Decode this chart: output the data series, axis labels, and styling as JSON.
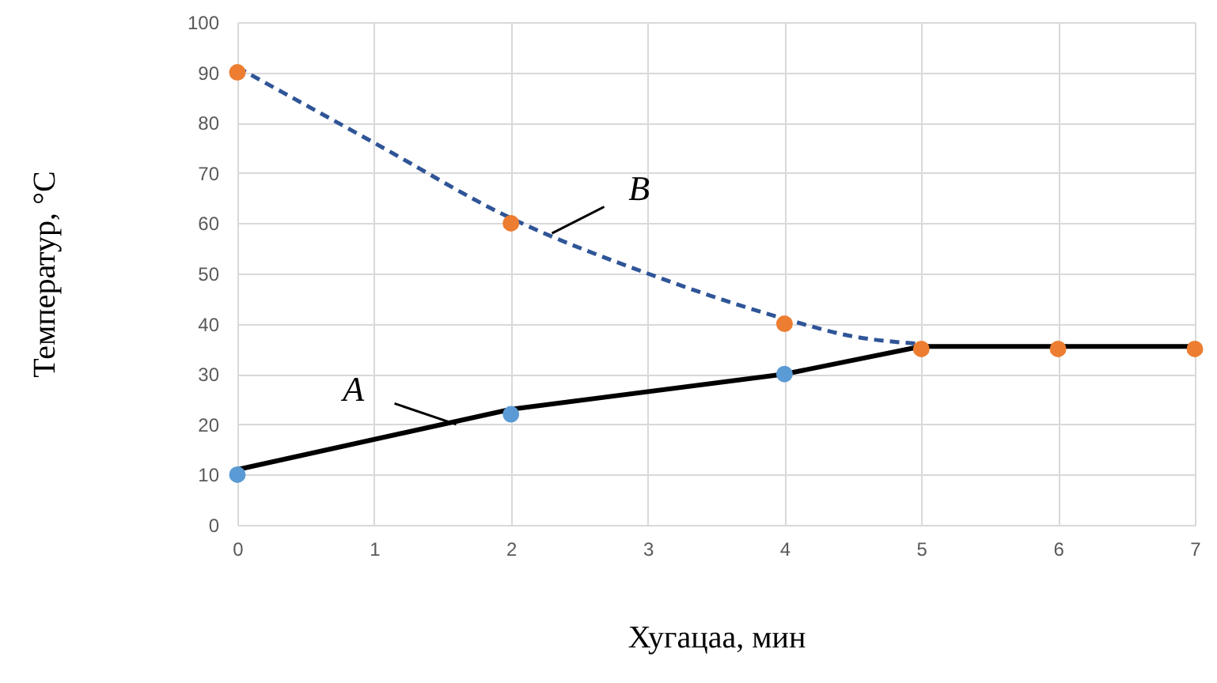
{
  "chart_data": {
    "type": "scatter",
    "xlabel": "Хугацаа, мин",
    "ylabel": "Температур, °C",
    "xlim": [
      0,
      7
    ],
    "xticks": [
      0,
      1,
      2,
      3,
      4,
      5,
      6,
      7
    ],
    "ylim": [
      0,
      100
    ],
    "yticks": [
      0,
      10,
      20,
      30,
      40,
      50,
      60,
      70,
      80,
      90,
      100
    ],
    "grid": true,
    "series": [
      {
        "type": "line",
        "color": "#2f5597",
        "line_style": "dashed",
        "marker": "none",
        "x": [
          0,
          1,
          2,
          3,
          4,
          4.5,
          5
        ],
        "values": [
          91,
          76,
          61,
          50,
          41,
          37.5,
          36
        ]
      },
      {
        "type": "line",
        "color": "#000000",
        "line_style": "solid",
        "marker": "none",
        "x": [
          0,
          2,
          4,
          5,
          6,
          7
        ],
        "values": [
          11,
          23,
          30,
          35.5,
          35.5,
          35.5
        ]
      },
      {
        "color": "#ed7d31",
        "marker": "circle",
        "x": [
          0,
          2,
          4,
          5,
          6,
          7
        ],
        "values": [
          90,
          60,
          40,
          35,
          35,
          35
        ]
      },
      {
        "color": "#5b9bd5",
        "marker": "circle",
        "x": [
          0,
          2,
          4
        ],
        "values": [
          10,
          22,
          30
        ]
      }
    ],
    "annotations": [
      {
        "text": "B",
        "x": 2.3,
        "y": 58
      },
      {
        "text": "A",
        "x": 1.6,
        "y": 20
      }
    ]
  }
}
